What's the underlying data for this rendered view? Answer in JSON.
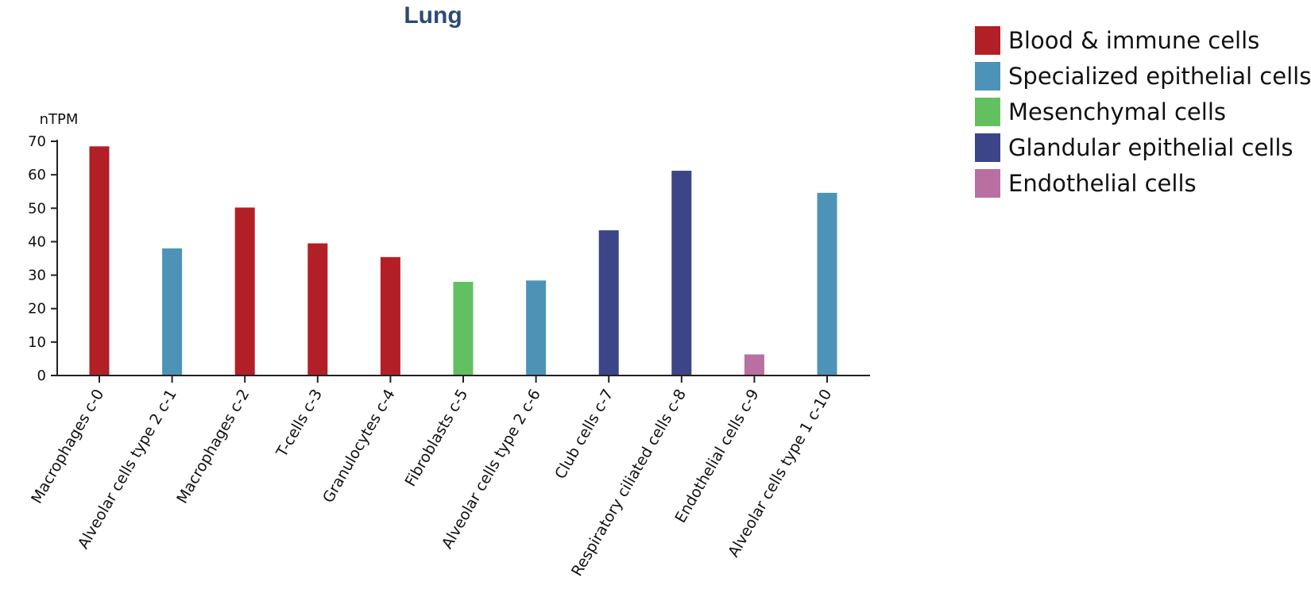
{
  "chart_data": {
    "type": "bar",
    "title": "Lung",
    "ylabel": "nTPM",
    "ylim": [
      0,
      70
    ],
    "yticks": [
      0,
      10,
      20,
      30,
      40,
      50,
      60,
      70
    ],
    "categories": [
      "Macrophages c-0",
      "Alveolar cells type 2 c-1",
      "Macrophages c-2",
      "T-cells c-3",
      "Granulocytes c-4",
      "Fibroblasts c-5",
      "Alveolar cells type 2 c-6",
      "Club cells c-7",
      "Respiratory ciliated cells c-8",
      "Endothelial cells c-9",
      "Alveolar cells type 1 c-10"
    ],
    "values": [
      68.5,
      38,
      50.2,
      39.5,
      35.4,
      28,
      28.4,
      43.4,
      61.2,
      6.3,
      54.6
    ],
    "groups": [
      "Blood & immune cells",
      "Specialized epithelial cells",
      "Blood & immune cells",
      "Blood & immune cells",
      "Blood & immune cells",
      "Mesenchymal cells",
      "Specialized epithelial cells",
      "Glandular epithelial cells",
      "Glandular epithelial cells",
      "Endothelial cells",
      "Specialized epithelial cells"
    ],
    "legend": [
      {
        "label": "Blood & immune cells",
        "color": "#b31f26"
      },
      {
        "label": "Specialized epithelial cells",
        "color": "#4d93b8"
      },
      {
        "label": "Mesenchymal cells",
        "color": "#62c061"
      },
      {
        "label": "Glandular epithelial cells",
        "color": "#3b4587"
      },
      {
        "label": "Endothelial cells",
        "color": "#b96fa2"
      }
    ],
    "legend_position": "top-right",
    "grid": false
  }
}
